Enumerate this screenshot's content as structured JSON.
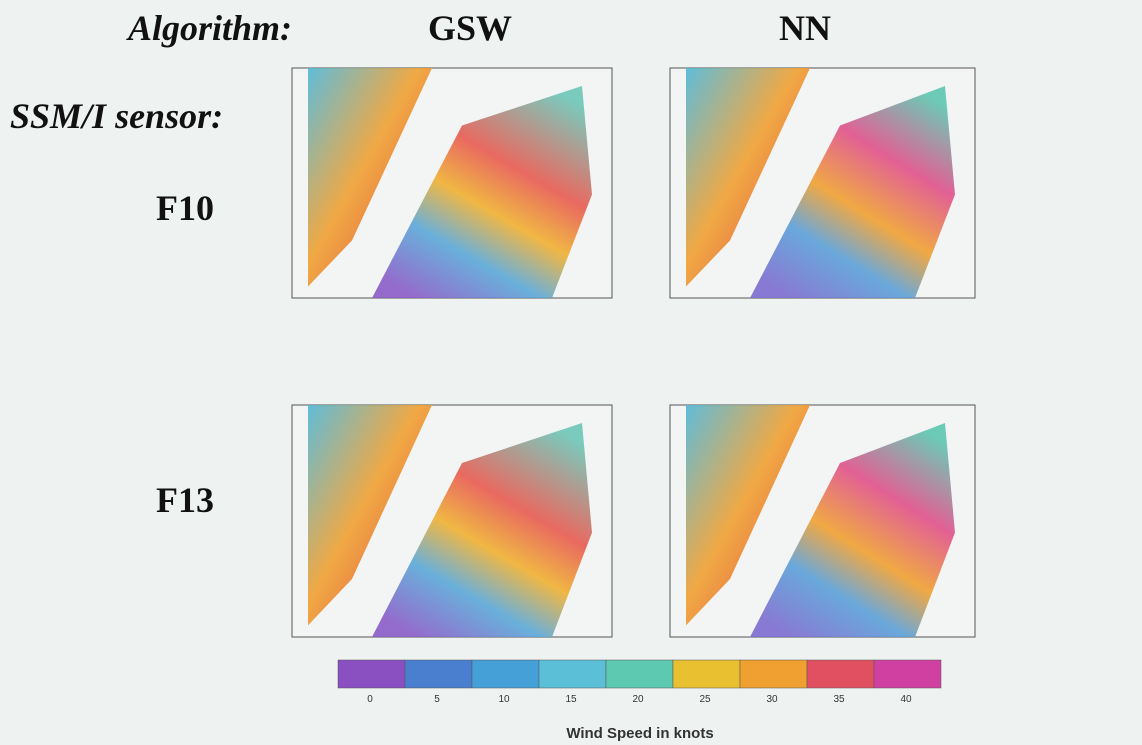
{
  "header": {
    "algorithm_label": "Algorithm:",
    "columns": [
      "GSW",
      "NN"
    ],
    "sensor_label": "SSM/I sensor:"
  },
  "rows": [
    "F10",
    "F13"
  ],
  "colorbar": {
    "ticks": [
      "0",
      "5",
      "10",
      "15",
      "20",
      "25",
      "30",
      "35",
      "40"
    ],
    "label": "Wind Speed in knots"
  }
}
